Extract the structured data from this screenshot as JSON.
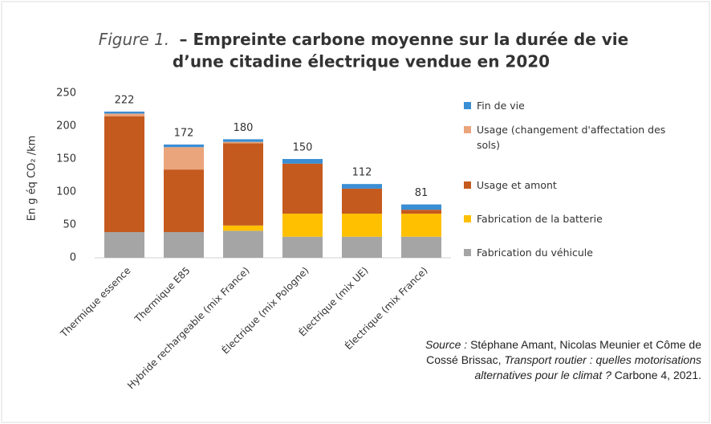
{
  "chart_data": {
    "type": "stacked_bar",
    "title_prefix": "Figure 1.",
    "title": "– Empreinte carbone moyenne sur la durée de vie",
    "title_line2": "d’une citadine électrique vendue en 2020",
    "y_label": "En g éq CO₂ /km",
    "categories": [
      "Thermique essence",
      "Thermique E85",
      "Hybride rechargeable (mix France)",
      "Électrique (mix Pologne)",
      "Électrique (mix UE)",
      "Électrique (mix France)"
    ],
    "series": [
      {
        "name": "Fabrication du véhicule",
        "color": "#a5a5a5",
        "values": [
          39,
          39,
          41,
          32,
          32,
          32
        ]
      },
      {
        "name": "Fabrication de la batterie",
        "color": "#ffc000",
        "values": [
          0,
          0,
          8,
          35,
          35,
          35
        ]
      },
      {
        "name": "Usage et amont",
        "color": "#c55a1e",
        "values": [
          176,
          95,
          125,
          76,
          38,
          6
        ]
      },
      {
        "name": "Usage (changement d'affectation des sols)",
        "color": "#eaa57c",
        "values": [
          4,
          34,
          2,
          0,
          0,
          0
        ]
      },
      {
        "name": "Fin de vie",
        "color": "#3a8ed4",
        "values": [
          3,
          4,
          4,
          7,
          7,
          8
        ]
      }
    ],
    "totals": [
      222,
      172,
      180,
      150,
      112,
      81
    ],
    "ylim": [
      0,
      250
    ],
    "yticks": [
      0,
      50,
      100,
      150,
      200,
      250
    ],
    "source": {
      "label": "Source :",
      "authors": "Stéphane Amant, Nicolas Meunier et Côme de Cossé Brissac,",
      "title": "Transport routier : quelles motorisations alternatives pour le climat ?",
      "publisher": "Carbone 4, 2021."
    }
  }
}
